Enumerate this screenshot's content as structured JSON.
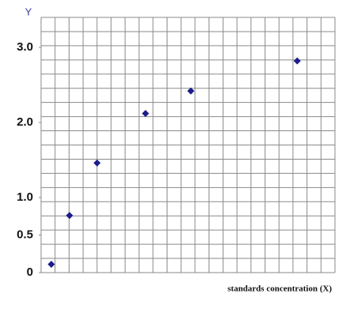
{
  "chart_data": {
    "type": "scatter",
    "y_label": "Y",
    "x_label": "standards concentration (X)",
    "x": [
      0.73,
      2.03,
      4.0,
      7.46,
      10.7,
      18.3
    ],
    "values": [
      0.11,
      0.76,
      1.46,
      2.12,
      2.42,
      2.82
    ],
    "color": "#1c1c8a",
    "xlim": [
      0,
      21
    ],
    "ylim": [
      0,
      3.4
    ],
    "yticks": [
      {
        "value": 0,
        "label": "0"
      },
      0.5,
      {
        "value": 1,
        "label": "1.0"
      },
      {
        "value": 2,
        "label": "2.0"
      },
      {
        "value": 3,
        "label": "3.0"
      }
    ],
    "grid": true
  }
}
